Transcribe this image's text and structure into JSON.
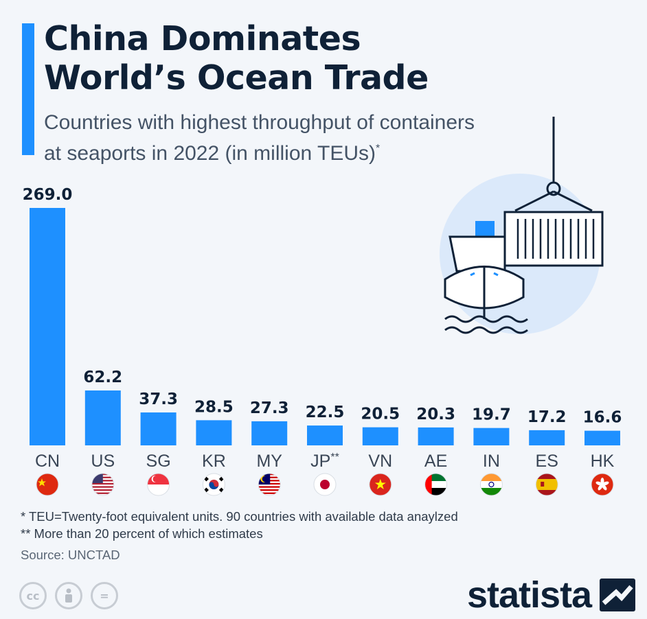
{
  "title_lines": [
    "China Dominates",
    "World’s Ocean Trade"
  ],
  "subtitle_lines": [
    "Countries with highest throughput of containers",
    "at seaports in 2022 (in million TEUs)"
  ],
  "subtitle_mark": "*",
  "chart_data": {
    "type": "bar",
    "title": "China Dominates World’s Ocean Trade",
    "subtitle": "Countries with highest throughput of containers at seaports in 2022 (in million TEUs)*",
    "categories": [
      "CN",
      "US",
      "SG",
      "KR",
      "MY",
      "JP**",
      "VN",
      "AE",
      "IN",
      "ES",
      "HK"
    ],
    "values": [
      269.0,
      62.2,
      37.3,
      28.5,
      27.3,
      22.5,
      20.5,
      20.3,
      19.7,
      17.2,
      16.6
    ],
    "value_labels": [
      "269.0",
      "62.2",
      "37.3",
      "28.5",
      "27.3",
      "22.5",
      "20.5",
      "20.3",
      "19.7",
      "17.2",
      "16.6"
    ],
    "ylim": [
      0,
      269.0
    ],
    "grid": false,
    "bar_color": "#1e90ff",
    "label_color": "#0f2137",
    "flag_icons": [
      "china-flag",
      "usa-flag",
      "singapore-flag",
      "south-korea-flag",
      "malaysia-flag",
      "japan-flag",
      "vietnam-flag",
      "uae-flag",
      "india-flag",
      "spain-flag",
      "hong-kong-flag"
    ]
  },
  "footnotes": [
    "*   TEU=Twenty-foot equivalent units. 90 countries with available data anaylzed",
    "** More than 20 percent of which estimates"
  ],
  "source": "Source: UNCTAD",
  "license_icons": [
    "cc-icon",
    "attribution-icon",
    "no-derivatives-icon"
  ],
  "license_text": {
    "cc": "cc",
    "nd": "="
  },
  "brand": {
    "name": "statista",
    "color": "#0f2137"
  },
  "colors": {
    "accent": "#1e90ff",
    "background": "#f3f6fa",
    "title": "#0f2137"
  }
}
